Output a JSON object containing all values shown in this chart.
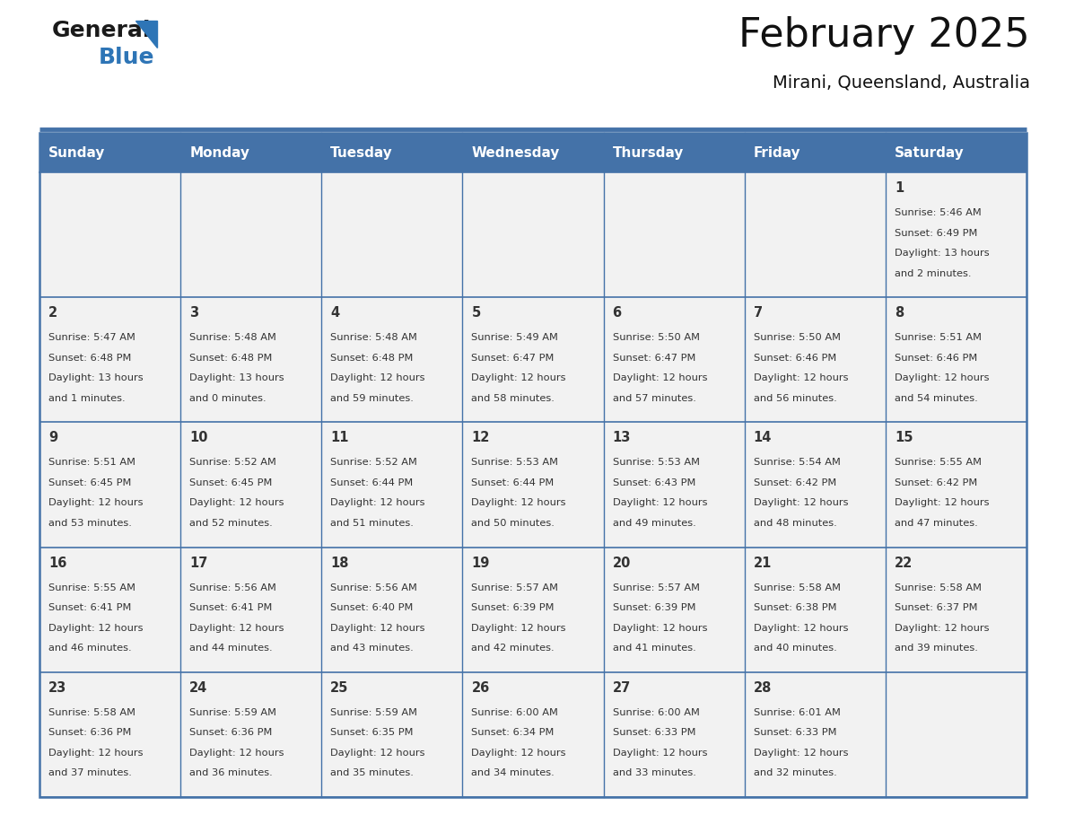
{
  "title": "February 2025",
  "subtitle": "Mirani, Queensland, Australia",
  "header_bg_color": "#4472A8",
  "header_text_color": "#FFFFFF",
  "cell_bg_color": "#F2F2F2",
  "border_color": "#4472A8",
  "row_divider_color": "#4472A8",
  "day_number_color": "#333333",
  "cell_text_color": "#333333",
  "days_of_week": [
    "Sunday",
    "Monday",
    "Tuesday",
    "Wednesday",
    "Thursday",
    "Friday",
    "Saturday"
  ],
  "logo_text1_color": "#1a1a1a",
  "logo_text2_color": "#2E75B6",
  "logo_triangle_color": "#2E75B6",
  "calendar_data": [
    [
      null,
      null,
      null,
      null,
      null,
      null,
      {
        "day": 1,
        "sunrise": "5:46 AM",
        "sunset": "6:49 PM",
        "daylight_hours": 13,
        "daylight_minutes": 2
      }
    ],
    [
      {
        "day": 2,
        "sunrise": "5:47 AM",
        "sunset": "6:48 PM",
        "daylight_hours": 13,
        "daylight_minutes": 1
      },
      {
        "day": 3,
        "sunrise": "5:48 AM",
        "sunset": "6:48 PM",
        "daylight_hours": 13,
        "daylight_minutes": 0
      },
      {
        "day": 4,
        "sunrise": "5:48 AM",
        "sunset": "6:48 PM",
        "daylight_hours": 12,
        "daylight_minutes": 59
      },
      {
        "day": 5,
        "sunrise": "5:49 AM",
        "sunset": "6:47 PM",
        "daylight_hours": 12,
        "daylight_minutes": 58
      },
      {
        "day": 6,
        "sunrise": "5:50 AM",
        "sunset": "6:47 PM",
        "daylight_hours": 12,
        "daylight_minutes": 57
      },
      {
        "day": 7,
        "sunrise": "5:50 AM",
        "sunset": "6:46 PM",
        "daylight_hours": 12,
        "daylight_minutes": 56
      },
      {
        "day": 8,
        "sunrise": "5:51 AM",
        "sunset": "6:46 PM",
        "daylight_hours": 12,
        "daylight_minutes": 54
      }
    ],
    [
      {
        "day": 9,
        "sunrise": "5:51 AM",
        "sunset": "6:45 PM",
        "daylight_hours": 12,
        "daylight_minutes": 53
      },
      {
        "day": 10,
        "sunrise": "5:52 AM",
        "sunset": "6:45 PM",
        "daylight_hours": 12,
        "daylight_minutes": 52
      },
      {
        "day": 11,
        "sunrise": "5:52 AM",
        "sunset": "6:44 PM",
        "daylight_hours": 12,
        "daylight_minutes": 51
      },
      {
        "day": 12,
        "sunrise": "5:53 AM",
        "sunset": "6:44 PM",
        "daylight_hours": 12,
        "daylight_minutes": 50
      },
      {
        "day": 13,
        "sunrise": "5:53 AM",
        "sunset": "6:43 PM",
        "daylight_hours": 12,
        "daylight_minutes": 49
      },
      {
        "day": 14,
        "sunrise": "5:54 AM",
        "sunset": "6:42 PM",
        "daylight_hours": 12,
        "daylight_minutes": 48
      },
      {
        "day": 15,
        "sunrise": "5:55 AM",
        "sunset": "6:42 PM",
        "daylight_hours": 12,
        "daylight_minutes": 47
      }
    ],
    [
      {
        "day": 16,
        "sunrise": "5:55 AM",
        "sunset": "6:41 PM",
        "daylight_hours": 12,
        "daylight_minutes": 46
      },
      {
        "day": 17,
        "sunrise": "5:56 AM",
        "sunset": "6:41 PM",
        "daylight_hours": 12,
        "daylight_minutes": 44
      },
      {
        "day": 18,
        "sunrise": "5:56 AM",
        "sunset": "6:40 PM",
        "daylight_hours": 12,
        "daylight_minutes": 43
      },
      {
        "day": 19,
        "sunrise": "5:57 AM",
        "sunset": "6:39 PM",
        "daylight_hours": 12,
        "daylight_minutes": 42
      },
      {
        "day": 20,
        "sunrise": "5:57 AM",
        "sunset": "6:39 PM",
        "daylight_hours": 12,
        "daylight_minutes": 41
      },
      {
        "day": 21,
        "sunrise": "5:58 AM",
        "sunset": "6:38 PM",
        "daylight_hours": 12,
        "daylight_minutes": 40
      },
      {
        "day": 22,
        "sunrise": "5:58 AM",
        "sunset": "6:37 PM",
        "daylight_hours": 12,
        "daylight_minutes": 39
      }
    ],
    [
      {
        "day": 23,
        "sunrise": "5:58 AM",
        "sunset": "6:36 PM",
        "daylight_hours": 12,
        "daylight_minutes": 37
      },
      {
        "day": 24,
        "sunrise": "5:59 AM",
        "sunset": "6:36 PM",
        "daylight_hours": 12,
        "daylight_minutes": 36
      },
      {
        "day": 25,
        "sunrise": "5:59 AM",
        "sunset": "6:35 PM",
        "daylight_hours": 12,
        "daylight_minutes": 35
      },
      {
        "day": 26,
        "sunrise": "6:00 AM",
        "sunset": "6:34 PM",
        "daylight_hours": 12,
        "daylight_minutes": 34
      },
      {
        "day": 27,
        "sunrise": "6:00 AM",
        "sunset": "6:33 PM",
        "daylight_hours": 12,
        "daylight_minutes": 33
      },
      {
        "day": 28,
        "sunrise": "6:01 AM",
        "sunset": "6:33 PM",
        "daylight_hours": 12,
        "daylight_minutes": 32
      },
      null
    ]
  ],
  "fig_width": 11.88,
  "fig_height": 9.18,
  "dpi": 100
}
